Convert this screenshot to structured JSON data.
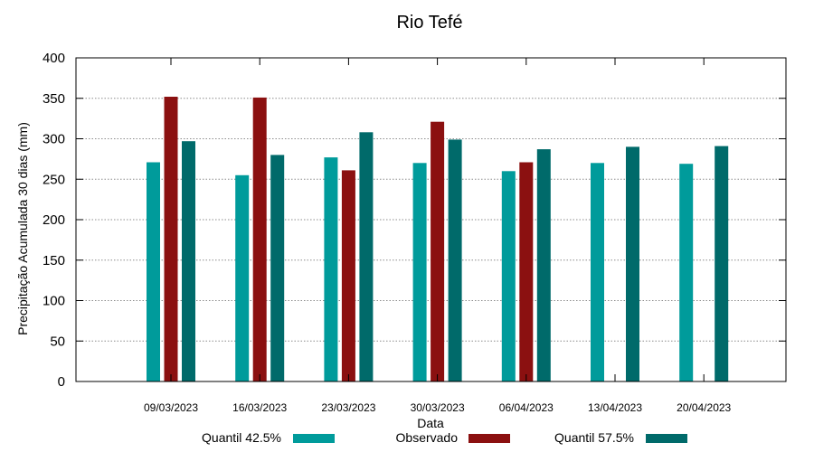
{
  "chart_data": {
    "type": "bar",
    "title": "Rio Tefé",
    "xlabel": "Data",
    "ylabel": "Precipitação Acumulada 30 dias (mm)",
    "ylim": [
      0,
      400
    ],
    "yticks": [
      0,
      50,
      100,
      150,
      200,
      250,
      300,
      350,
      400
    ],
    "grid": true,
    "legend_position": "bottom",
    "categories": [
      "09/03/2023",
      "16/03/2023",
      "23/03/2023",
      "30/03/2023",
      "06/04/2023",
      "13/04/2023",
      "20/04/2023"
    ],
    "series": [
      {
        "name": "Quantil 42.5%",
        "color": "#009b9b",
        "values": [
          271,
          255,
          277,
          270,
          260,
          270,
          269
        ]
      },
      {
        "name": "Observado",
        "color": "#8b1010",
        "values": [
          352,
          351,
          261,
          321,
          271,
          null,
          null
        ]
      },
      {
        "name": "Quantil 57.5%",
        "color": "#006a6a",
        "values": [
          297,
          280,
          308,
          299,
          287,
          290,
          291
        ]
      }
    ]
  }
}
